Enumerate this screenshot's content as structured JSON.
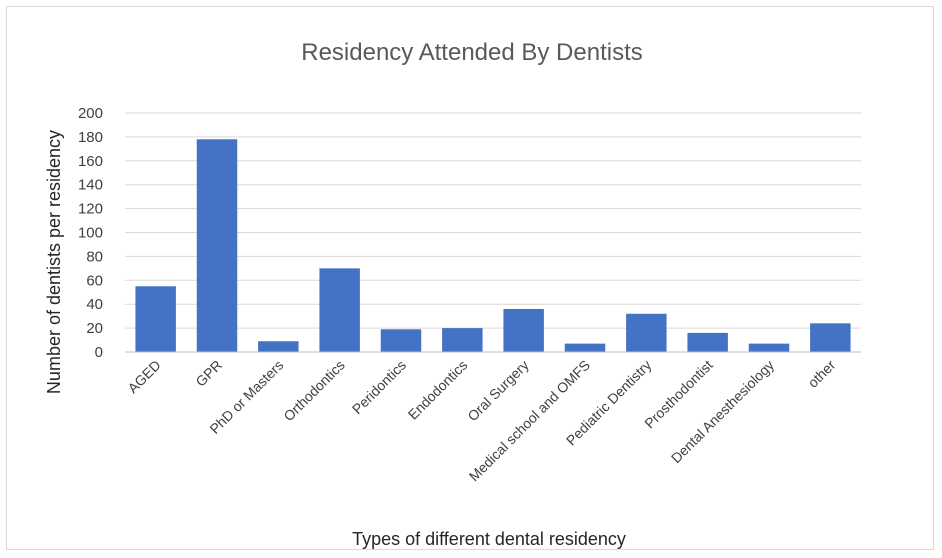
{
  "chart_data": {
    "type": "bar",
    "title": "Residency Attended By Dentists",
    "xlabel": "Types of different dental residency",
    "ylabel": "Number of dentists per residency",
    "categories": [
      "AGED",
      "GPR",
      "PhD or Masters",
      "Orthodontics",
      "Peridontics",
      "Endodontics",
      "Oral Surgery",
      "Medical school and OMFS",
      "Pediatric Dentistry",
      "Prosthodontist",
      "Dental Anesthesiology",
      "other"
    ],
    "values": [
      55,
      178,
      9,
      70,
      19,
      20,
      36,
      7,
      32,
      16,
      7,
      24
    ],
    "ylim": [
      0,
      200
    ],
    "yticks": [
      "0",
      "20",
      "40",
      "60",
      "80",
      "100",
      "120",
      "140",
      "160",
      "180",
      "200"
    ],
    "grid": true,
    "legend": "none",
    "bar_color": "#4472C4"
  }
}
